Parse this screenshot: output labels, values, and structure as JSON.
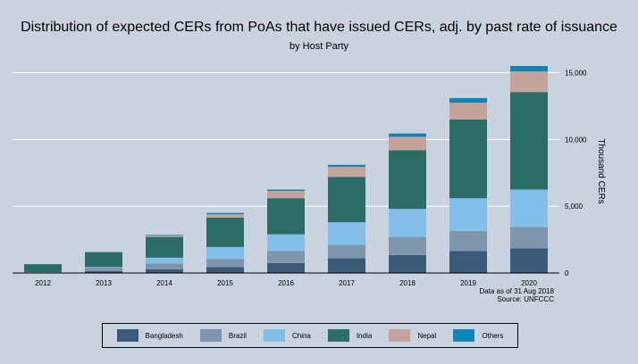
{
  "chart_data": {
    "type": "bar",
    "stacked": true,
    "title": "Distribution of expected CERs from PoAs that have issued CERs, adj. by past rate of issuance",
    "subtitle": "by Host Party",
    "ylabel": "Thousand CERs",
    "y_axis_position": "right",
    "ylim": [
      0,
      15500
    ],
    "yticks": [
      0,
      5000,
      10000,
      15000
    ],
    "ytick_labels": [
      "0",
      "5,000",
      "10,000",
      "15,000"
    ],
    "grid": "horizontal",
    "legend_position": "bottom",
    "categories": [
      "2012",
      "2013",
      "2014",
      "2015",
      "2016",
      "2017",
      "2018",
      "2019",
      "2020"
    ],
    "series": [
      {
        "name": "Bangladesh",
        "color": "#3b5a78",
        "values": [
          30,
          150,
          280,
          450,
          750,
          1100,
          1350,
          1650,
          1850
        ]
      },
      {
        "name": "Brazil",
        "color": "#7f95ab",
        "values": [
          20,
          250,
          420,
          600,
          900,
          1000,
          1350,
          1500,
          1600
        ]
      },
      {
        "name": "China",
        "color": "#82bee8",
        "values": [
          10,
          50,
          450,
          900,
          1250,
          1700,
          2100,
          2450,
          2800
        ]
      },
      {
        "name": "India",
        "color": "#2b6d64",
        "values": [
          600,
          1100,
          1550,
          2200,
          2700,
          3400,
          4400,
          5900,
          7300
        ]
      },
      {
        "name": "Nepal",
        "color": "#c4a39b",
        "values": [
          0,
          20,
          100,
          250,
          550,
          750,
          1000,
          1250,
          1550
        ]
      },
      {
        "name": "Others",
        "color": "#1086b8",
        "values": [
          0,
          20,
          50,
          100,
          100,
          150,
          250,
          350,
          400
        ]
      }
    ]
  },
  "notes": {
    "line1": "Data as of 31 Aug 2018",
    "line2": "Source: UNFCCC"
  }
}
